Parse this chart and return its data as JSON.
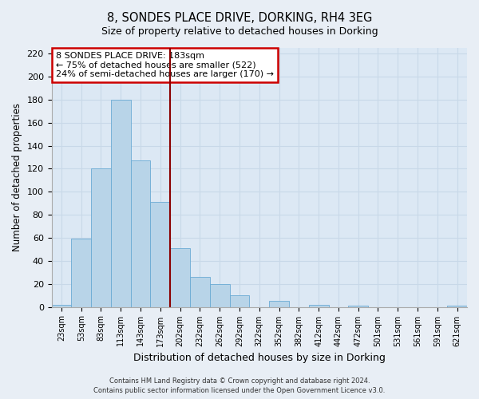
{
  "title": "8, SONDES PLACE DRIVE, DORKING, RH4 3EG",
  "subtitle": "Size of property relative to detached houses in Dorking",
  "xlabel": "Distribution of detached houses by size in Dorking",
  "ylabel": "Number of detached properties",
  "bar_labels": [
    "23sqm",
    "53sqm",
    "83sqm",
    "113sqm",
    "143sqm",
    "173sqm",
    "202sqm",
    "232sqm",
    "262sqm",
    "292sqm",
    "322sqm",
    "352sqm",
    "382sqm",
    "412sqm",
    "442sqm",
    "472sqm",
    "501sqm",
    "531sqm",
    "561sqm",
    "591sqm",
    "621sqm"
  ],
  "bar_values": [
    2,
    59,
    120,
    180,
    127,
    91,
    51,
    26,
    20,
    10,
    0,
    5,
    0,
    2,
    0,
    1,
    0,
    0,
    0,
    0,
    1
  ],
  "bar_color": "#b8d4e8",
  "bar_edge_color": "#6aaad4",
  "vline_x": 5.5,
  "vline_color": "#8b0000",
  "ylim": [
    0,
    225
  ],
  "yticks": [
    0,
    20,
    40,
    60,
    80,
    100,
    120,
    140,
    160,
    180,
    200,
    220
  ],
  "annotation_title": "8 SONDES PLACE DRIVE: 183sqm",
  "annotation_line1": "← 75% of detached houses are smaller (522)",
  "annotation_line2": "24% of semi-detached houses are larger (170) →",
  "annotation_box_facecolor": "#ffffff",
  "annotation_box_edgecolor": "#cc0000",
  "footer1": "Contains HM Land Registry data © Crown copyright and database right 2024.",
  "footer2": "Contains public sector information licensed under the Open Government Licence v3.0.",
  "bg_color": "#e8eef5",
  "plot_bg_color": "#dce8f4",
  "grid_color": "#c8d8e8"
}
